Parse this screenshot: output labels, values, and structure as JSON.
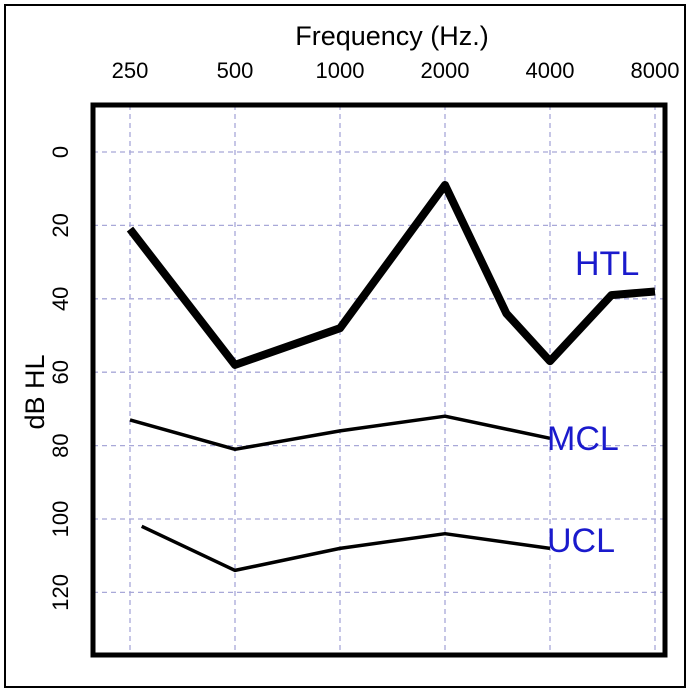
{
  "chart_data": {
    "type": "line",
    "xlabel": "Frequency (Hz.)",
    "ylabel": "dB HL",
    "x_categories": [
      "250",
      "500",
      "1000",
      "2000",
      "4000",
      "8000"
    ],
    "y_ticks": [
      0,
      20,
      40,
      60,
      80,
      100,
      120
    ],
    "ylim": [
      -3,
      138
    ],
    "y_inverted": true,
    "grid": true,
    "colors": {
      "line": "#000000",
      "grid": "#a8a8d8",
      "label": "#1a1acc"
    },
    "series": [
      {
        "name": "HTL",
        "points": [
          {
            "x": 250,
            "y": 21
          },
          {
            "x": 500,
            "y": 58
          },
          {
            "x": 1000,
            "y": 48
          },
          {
            "x": 2000,
            "y": 9
          },
          {
            "x": 3000,
            "y": 44
          },
          {
            "x": 4000,
            "y": 57
          },
          {
            "x": 6000,
            "y": 39
          },
          {
            "x": 8000,
            "y": 38
          }
        ]
      },
      {
        "name": "MCL",
        "points": [
          {
            "x": 250,
            "y": 73
          },
          {
            "x": 500,
            "y": 81
          },
          {
            "x": 1000,
            "y": 76
          },
          {
            "x": 2000,
            "y": 72
          },
          {
            "x": 4000,
            "y": 78
          }
        ]
      },
      {
        "name": "UCL",
        "points": [
          {
            "x": 270,
            "y": 102
          },
          {
            "x": 500,
            "y": 114
          },
          {
            "x": 1000,
            "y": 108
          },
          {
            "x": 2000,
            "y": 104
          },
          {
            "x": 4000,
            "y": 108
          }
        ]
      }
    ]
  }
}
